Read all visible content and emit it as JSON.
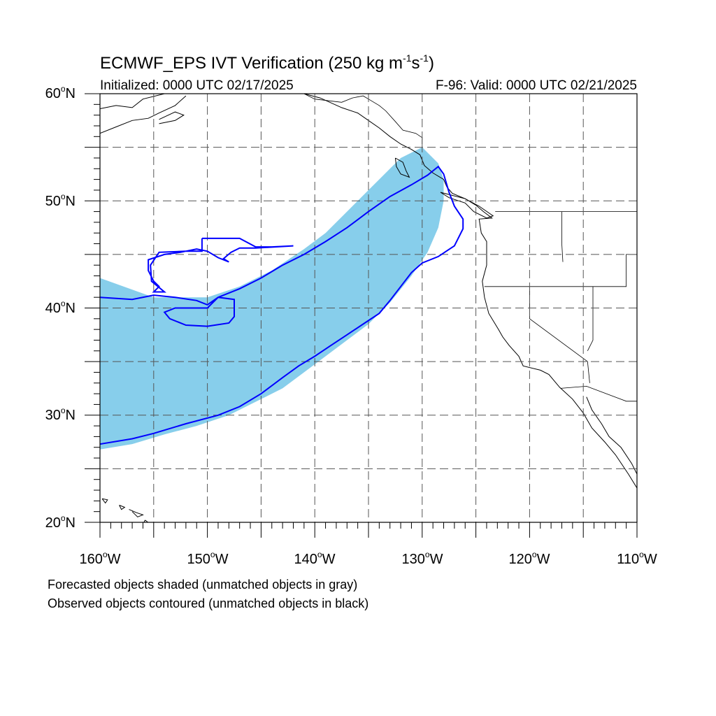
{
  "header": {
    "title_main": "ECMWF_EPS IVT Verification (250 kg m",
    "title_sup1": "-1",
    "title_mid": "s",
    "title_sup2": "-1",
    "title_end": ")",
    "initialized": "Initialized: 0000 UTC 02/17/2025",
    "valid": "F-96: Valid: 0000 UTC 02/21/2025"
  },
  "map": {
    "projection": "cylindrical equidistant",
    "lon_range": [
      -160,
      -110
    ],
    "lat_range": [
      20,
      60
    ],
    "grid": "dashed",
    "lat_labels": [
      "60",
      "50",
      "40",
      "30",
      "20"
    ],
    "lon_labels": [
      "160",
      "150",
      "140",
      "130",
      "120",
      "110"
    ],
    "lat_suffix": "N",
    "lon_suffix": "W",
    "degree_symbol": "o",
    "colors": {
      "forecast_fill": "#87ceeb",
      "observed_contour": "#0000ff",
      "coastline": "#000000",
      "grid": "#555555"
    }
  },
  "legend": {
    "line1": "Forecasted objects shaded (unmatched objects in gray)",
    "line2": "Observed objects contoured (unmatched objects in black)"
  },
  "chart_data": {
    "type": "map",
    "forecast_object": {
      "upper_edge": [
        [
          -160,
          42.8
        ],
        [
          -155,
          41
        ],
        [
          -150,
          41
        ],
        [
          -147,
          42
        ],
        [
          -144,
          43.5
        ],
        [
          -141,
          45.5
        ],
        [
          -139,
          47
        ],
        [
          -137,
          49
        ],
        [
          -135,
          51
        ],
        [
          -133,
          53
        ],
        [
          -132,
          54
        ],
        [
          -130,
          55
        ],
        [
          -128.5,
          53.5
        ],
        [
          -128,
          52
        ],
        [
          -128,
          50
        ]
      ],
      "lower_edge": [
        [
          -128,
          50
        ],
        [
          -128.5,
          47.5
        ],
        [
          -129.5,
          45.2
        ],
        [
          -131,
          43
        ],
        [
          -133,
          40.5
        ],
        [
          -135,
          38.5
        ],
        [
          -137,
          37
        ],
        [
          -139,
          35.5
        ],
        [
          -141,
          34
        ],
        [
          -143,
          32.5
        ],
        [
          -145,
          31.5
        ],
        [
          -148,
          30
        ],
        [
          -151,
          29
        ],
        [
          -154,
          28.2
        ],
        [
          -157,
          27.3
        ],
        [
          -160,
          26.8
        ]
      ]
    },
    "observed_main_contour": [
      [
        -160,
        41
      ],
      [
        -157,
        40.8
      ],
      [
        -155,
        41.2
      ],
      [
        -153,
        41
      ],
      [
        -151,
        40.7
      ],
      [
        -150,
        40.3
      ],
      [
        -149,
        41
      ],
      [
        -147.5,
        40.8
      ],
      [
        -147.5,
        39.2
      ],
      [
        -148,
        38.6
      ],
      [
        -150,
        38.3
      ],
      [
        -152,
        38.4
      ],
      [
        -153.5,
        39
      ],
      [
        -154,
        39.6
      ],
      [
        -153,
        40
      ],
      [
        -150,
        40
      ],
      [
        -149,
        41
      ],
      [
        -147,
        41.8
      ],
      [
        -145,
        42.8
      ],
      [
        -143,
        44
      ],
      [
        -141,
        45
      ],
      [
        -139,
        46.2
      ],
      [
        -137,
        47.5
      ],
      [
        -135,
        49
      ],
      [
        -133,
        50.4
      ],
      [
        -131,
        51.5
      ],
      [
        -129.5,
        52.4
      ],
      [
        -128.5,
        53.2
      ],
      [
        -128,
        52.5
      ],
      [
        -127.5,
        50.8
      ],
      [
        -127,
        49.5
      ],
      [
        -126.2,
        48.3
      ],
      [
        -126.2,
        47.4
      ],
      [
        -127,
        45.8
      ],
      [
        -128.5,
        44.8
      ],
      [
        -130,
        44.2
      ],
      [
        -131,
        43.3
      ],
      [
        -132,
        42
      ],
      [
        -133,
        40.7
      ],
      [
        -134,
        39.5
      ],
      [
        -135.5,
        38.5
      ],
      [
        -137,
        37.5
      ],
      [
        -138.5,
        36.5
      ],
      [
        -140,
        35.5
      ],
      [
        -141.5,
        34.6
      ],
      [
        -143,
        33.5
      ],
      [
        -145,
        32
      ],
      [
        -147,
        30.8
      ],
      [
        -149,
        30
      ],
      [
        -152,
        29.2
      ],
      [
        -155,
        28.3
      ],
      [
        -157,
        27.8
      ],
      [
        -160,
        27.3
      ]
    ],
    "observed_north_contour": [
      [
        -150.5,
        46.5
      ],
      [
        -147,
        46.5
      ],
      [
        -145.5,
        45.7
      ],
      [
        -144,
        45.7
      ],
      [
        -142,
        45.8
      ],
      [
        -145.5,
        45.6
      ],
      [
        -147,
        45.6
      ],
      [
        -147.8,
        45.2
      ],
      [
        -148.5,
        44.6
      ],
      [
        -148,
        44.3
      ],
      [
        -149,
        44.7
      ],
      [
        -150,
        45.3
      ],
      [
        -151,
        45.5
      ],
      [
        -152.5,
        45.2
      ],
      [
        -154,
        45
      ],
      [
        -155.5,
        44.5
      ],
      [
        -155.5,
        43.5
      ],
      [
        -155,
        42.5
      ],
      [
        -154.5,
        42
      ],
      [
        -155,
        41.5
      ],
      [
        -154,
        41.5
      ],
      [
        -155.2,
        42.5
      ],
      [
        -155.3,
        44
      ],
      [
        -154.5,
        45.2
      ],
      [
        -152,
        45.3
      ],
      [
        -150.5,
        45.3
      ],
      [
        -150.5,
        46.5
      ]
    ],
    "coastlines": [
      [
        [
          -160,
          58.6
        ],
        [
          -158.5,
          58.9
        ],
        [
          -157,
          58.7
        ],
        [
          -156,
          59.5
        ],
        [
          -154,
          60
        ]
      ],
      [
        [
          -160,
          56.3
        ],
        [
          -158.5,
          56.9
        ],
        [
          -157,
          57.5
        ],
        [
          -155.5,
          57.7
        ],
        [
          -154.5,
          58.2
        ],
        [
          -153,
          58.9
        ],
        [
          -152,
          59.8
        ]
      ],
      [
        [
          -154.5,
          57.2
        ],
        [
          -153,
          57.5
        ],
        [
          -152.2,
          58
        ],
        [
          -153,
          58.3
        ],
        [
          -154.5,
          57.6
        ]
      ],
      [
        [
          -141,
          60
        ],
        [
          -139.5,
          59.6
        ],
        [
          -137.5,
          58.7
        ],
        [
          -136,
          58.2
        ],
        [
          -135,
          57.5
        ],
        [
          -134,
          56.8
        ],
        [
          -133,
          56
        ],
        [
          -132,
          55.3
        ],
        [
          -131,
          54.8
        ],
        [
          -130.2,
          54.3
        ],
        [
          -129.8,
          53.3
        ],
        [
          -129,
          52.6
        ],
        [
          -128,
          52
        ],
        [
          -127.7,
          51.3
        ],
        [
          -127.2,
          50.7
        ],
        [
          -126,
          50.2
        ],
        [
          -125,
          49.6
        ],
        [
          -124.3,
          49
        ],
        [
          -123.5,
          48.4
        ],
        [
          -124.7,
          48.3
        ],
        [
          -124.5,
          47
        ],
        [
          -124,
          46.2
        ],
        [
          -124,
          44
        ],
        [
          -124.4,
          42.5
        ],
        [
          -124.2,
          41
        ],
        [
          -123.8,
          39.5
        ],
        [
          -122.9,
          38
        ],
        [
          -122.5,
          37.3
        ],
        [
          -121.9,
          36.5
        ],
        [
          -121,
          35.5
        ],
        [
          -120.6,
          34.6
        ],
        [
          -119,
          34.2
        ],
        [
          -118.2,
          33.8
        ],
        [
          -117.2,
          32.6
        ],
        [
          -116,
          31.5
        ],
        [
          -115,
          30.2
        ],
        [
          -114.2,
          28.8
        ],
        [
          -113,
          27.5
        ],
        [
          -112,
          26.3
        ],
        [
          -110.8,
          24.5
        ],
        [
          -110,
          23.2
        ]
      ],
      [
        [
          -132.5,
          54
        ],
        [
          -131.8,
          53.6
        ],
        [
          -131.5,
          52.8
        ],
        [
          -131.2,
          52.2
        ],
        [
          -132,
          52.5
        ],
        [
          -132.4,
          53.2
        ],
        [
          -132.5,
          54
        ]
      ],
      [
        [
          -128.3,
          50.8
        ],
        [
          -127.5,
          50.3
        ],
        [
          -126,
          49.8
        ],
        [
          -125.2,
          49
        ],
        [
          -124,
          48.4
        ],
        [
          -123.4,
          48.6
        ],
        [
          -124.7,
          49.5
        ],
        [
          -126,
          50.2
        ],
        [
          -128.3,
          50.8
        ]
      ],
      [
        [
          -114.7,
          31.7
        ],
        [
          -114.2,
          30.5
        ],
        [
          -113.3,
          29.2
        ],
        [
          -112.6,
          28
        ],
        [
          -111.5,
          27
        ],
        [
          -110.5,
          25.5
        ],
        [
          -110,
          24.5
        ]
      ],
      [
        [
          -155.8,
          20.2
        ],
        [
          -155,
          19.6
        ],
        [
          -155.9,
          19.2
        ],
        [
          -156,
          19.8
        ],
        [
          -155.8,
          20.2
        ]
      ],
      [
        [
          -157.3,
          21.2
        ],
        [
          -156.6,
          20.9
        ],
        [
          -156,
          20.7
        ],
        [
          -156.5,
          20.5
        ],
        [
          -157,
          21
        ]
      ],
      [
        [
          -159.8,
          22.2
        ],
        [
          -159.3,
          22.1
        ],
        [
          -159.5,
          21.8
        ],
        [
          -159.8,
          22.2
        ]
      ],
      [
        [
          -158.2,
          21.6
        ],
        [
          -157.7,
          21.4
        ],
        [
          -158,
          21.2
        ],
        [
          -158.2,
          21.6
        ]
      ]
    ],
    "borders": [
      [
        [
          -141,
          60
        ],
        [
          -140,
          59.5
        ],
        [
          -137.5,
          59.2
        ],
        [
          -136.5,
          59.6
        ],
        [
          -135.5,
          59.8
        ],
        [
          -135,
          59.5
        ],
        [
          -134,
          58.9
        ],
        [
          -133.4,
          58.4
        ],
        [
          -132.5,
          57.4
        ],
        [
          -131.8,
          56.6
        ],
        [
          -130.6,
          56.3
        ],
        [
          -130,
          55.9
        ],
        [
          -130,
          55.3
        ]
      ],
      [
        [
          -123.2,
          49
        ],
        [
          -110,
          49
        ]
      ],
      [
        [
          -124.2,
          42
        ],
        [
          -111,
          42
        ],
        [
          -111,
          45
        ],
        [
          -110,
          45
        ]
      ],
      [
        [
          -117,
          49
        ],
        [
          -117,
          46
        ],
        [
          -116.9,
          44.3
        ]
      ],
      [
        [
          -120,
          42
        ],
        [
          -120,
          39
        ],
        [
          -114.6,
          35
        ],
        [
          -114.4,
          33
        ]
      ],
      [
        [
          -114.1,
          42
        ],
        [
          -114.1,
          37
        ],
        [
          -114.6,
          36
        ]
      ],
      [
        [
          -117.1,
          32.5
        ],
        [
          -114.7,
          32.7
        ],
        [
          -111,
          31.3
        ],
        [
          -110,
          31.3
        ]
      ]
    ]
  }
}
